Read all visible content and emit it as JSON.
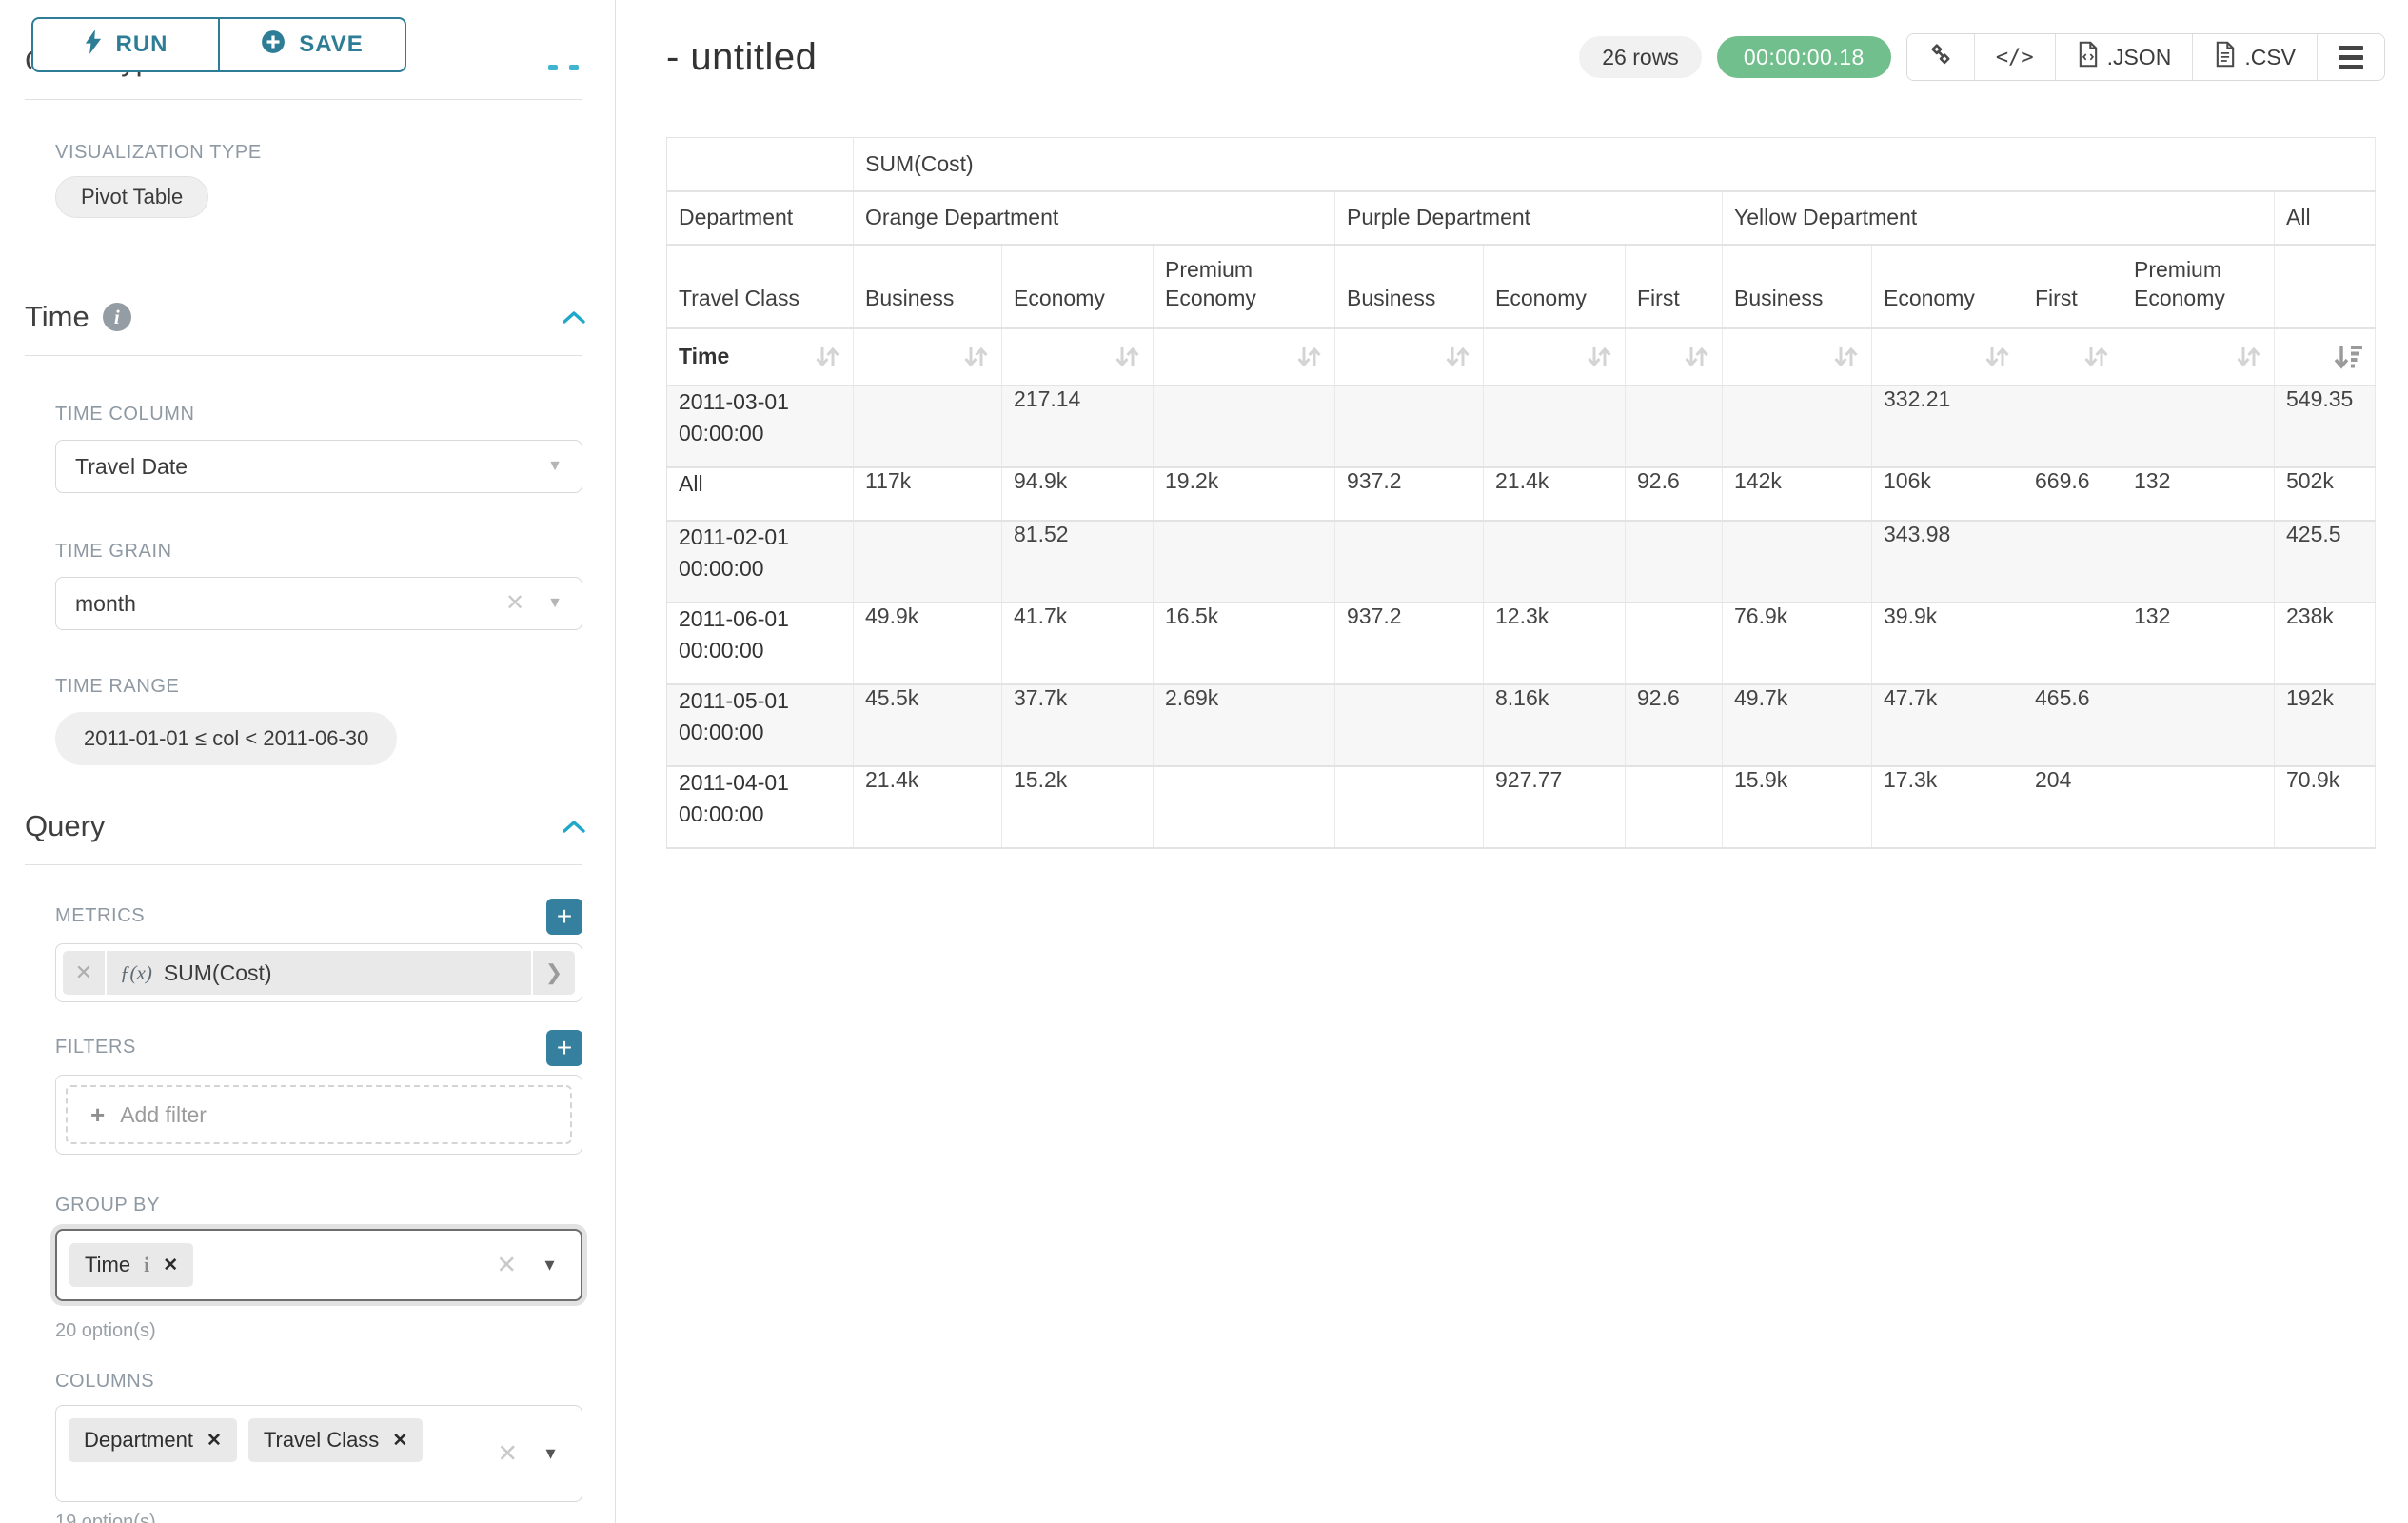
{
  "sidebar": {
    "run_label": "RUN",
    "save_label": "SAVE",
    "chart_type_heading": "Chart Type",
    "visualization_type_label": "VISUALIZATION TYPE",
    "visualization_type_value": "Pivot Table",
    "time_heading": "Time",
    "time_column_label": "TIME COLUMN",
    "time_column_value": "Travel Date",
    "time_grain_label": "TIME GRAIN",
    "time_grain_value": "month",
    "time_range_label": "TIME RANGE",
    "time_range_value": "2011-01-01 ≤ col < 2011-06-30",
    "query_heading": "Query",
    "metrics_label": "METRICS",
    "metric_fx": "ƒ(x)",
    "metric_value": "SUM(Cost)",
    "filters_label": "FILTERS",
    "add_filter_label": "Add filter",
    "group_by_label": "GROUP BY",
    "group_by_tags": [
      "Time"
    ],
    "group_by_options": "20 option(s)",
    "columns_label": "COLUMNS",
    "columns_tags": [
      "Department",
      "Travel Class"
    ],
    "columns_options": "19 option(s)"
  },
  "header": {
    "title": "- untitled",
    "rows_badge": "26 rows",
    "timer": "00:00:00.18",
    "json_label": ".JSON",
    "csv_label": ".CSV"
  },
  "icons": {
    "run": "lightning-bolt",
    "save": "plus-circle",
    "time_info": "info-circle",
    "section_collapse": "chevron-up",
    "add": "plus",
    "metric_remove": "x",
    "metric_expand": "chevron-right",
    "share": "link-chain",
    "embed": "code-brackets",
    "json_export": "file-code",
    "csv_export": "file-text",
    "menu": "hamburger",
    "sortable": "sort-arrows",
    "sorted_desc": "sort-amount-desc"
  },
  "colors": {
    "accent": "#2e7d96",
    "chevron_blue": "#1fa8c9",
    "timer_green": "#71bf8c",
    "label_gray": "#8e99a3"
  },
  "chart_data": {
    "type": "table",
    "metric_label": "SUM(Cost)",
    "row_dimension_label": "Department",
    "col_dimension_label": "Travel Class",
    "time_label": "Time",
    "groups": [
      {
        "name": "Orange Department",
        "cols": [
          "Business",
          "Economy",
          "Premium Economy"
        ]
      },
      {
        "name": "Purple Department",
        "cols": [
          "Business",
          "Economy",
          "First"
        ]
      },
      {
        "name": "Yellow Department",
        "cols": [
          "Business",
          "Economy",
          "First",
          "Premium Economy"
        ]
      },
      {
        "name": "All",
        "cols": [
          ""
        ]
      }
    ],
    "rows": [
      {
        "label": "2011-03-01 00:00:00",
        "values": [
          "",
          "217.14",
          "",
          "",
          "",
          "",
          "",
          "332.21",
          "",
          "",
          "549.35"
        ]
      },
      {
        "label": "All",
        "values": [
          "117k",
          "94.9k",
          "19.2k",
          "937.2",
          "21.4k",
          "92.6",
          "142k",
          "106k",
          "669.6",
          "132",
          "502k"
        ]
      },
      {
        "label": "2011-02-01 00:00:00",
        "values": [
          "",
          "81.52",
          "",
          "",
          "",
          "",
          "",
          "343.98",
          "",
          "",
          "425.5"
        ]
      },
      {
        "label": "2011-06-01 00:00:00",
        "values": [
          "49.9k",
          "41.7k",
          "16.5k",
          "937.2",
          "12.3k",
          "",
          "76.9k",
          "39.9k",
          "",
          "132",
          "238k"
        ]
      },
      {
        "label": "2011-05-01 00:00:00",
        "values": [
          "45.5k",
          "37.7k",
          "2.69k",
          "",
          "8.16k",
          "92.6",
          "49.7k",
          "47.7k",
          "465.6",
          "",
          "192k"
        ]
      },
      {
        "label": "2011-04-01 00:00:00",
        "values": [
          "21.4k",
          "15.2k",
          "",
          "",
          "927.77",
          "",
          "15.9k",
          "17.3k",
          "204",
          "",
          "70.9k"
        ]
      }
    ]
  }
}
